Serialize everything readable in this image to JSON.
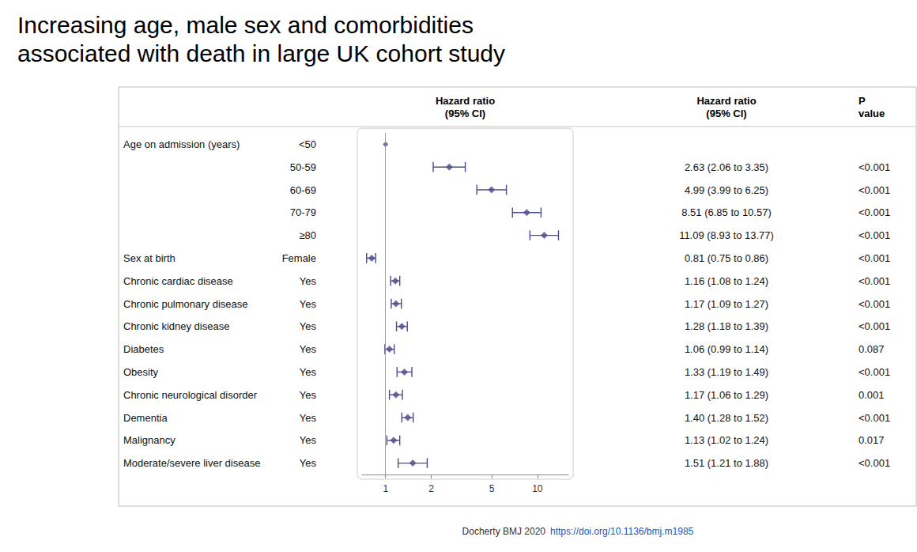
{
  "chart_data": {
    "type": "forest",
    "title": "Increasing age, male sex and comorbidities\nassociated with death in large UK cohort study",
    "xlabel": "Hazard ratio\n(95% CI)",
    "row_labels": [
      "Age on admission (years)",
      null,
      null,
      null,
      null,
      "Sex at birth",
      "Chronic cardiac disease",
      "Chronic pulmonary disease",
      "Chronic kidney disease",
      "Diabetes",
      "Obesity",
      "Chronic neurological disorder",
      "Dementia",
      "Malignancy",
      "Moderate/severe liver disease"
    ],
    "categories": [
      "<50",
      "50-59",
      "60-69",
      "70-79",
      "≥80",
      "Female",
      "Yes",
      "Yes",
      "Yes",
      "Yes",
      "Yes",
      "Yes",
      "Yes",
      "Yes",
      "Yes"
    ],
    "values": [
      1.0,
      2.63,
      4.99,
      8.51,
      11.09,
      0.81,
      1.16,
      1.17,
      1.28,
      1.06,
      1.33,
      1.17,
      1.4,
      1.13,
      1.51
    ],
    "lo": [
      1.0,
      2.06,
      3.99,
      6.85,
      8.93,
      0.75,
      1.08,
      1.09,
      1.18,
      0.99,
      1.19,
      1.06,
      1.28,
      1.02,
      1.21
    ],
    "hi": [
      1.0,
      3.35,
      6.25,
      10.57,
      13.77,
      0.86,
      1.24,
      1.27,
      1.39,
      1.14,
      1.49,
      1.29,
      1.52,
      1.24,
      1.88
    ],
    "hr_labels": [
      null,
      "2.63 (2.06 to 3.35)",
      "4.99 (3.99 to 6.25)",
      "8.51 (6.85 to 10.57)",
      "11.09 (8.93 to 13.77)",
      "0.81 (0.75 to 0.86)",
      "1.16 (1.08 to 1.24)",
      "1.17 (1.09 to 1.27)",
      "1.28 (1.18 to 1.39)",
      "1.06 (0.99 to 1.14)",
      "1.33 (1.19 to 1.49)",
      "1.17 (1.06 to 1.29)",
      "1.40 (1.28 to 1.52)",
      "1.13 (1.02 to 1.24)",
      "1.51 (1.21 to 1.88)"
    ],
    "p_labels": [
      null,
      "<0.001",
      "<0.001",
      "<0.001",
      "<0.001",
      "<0.001",
      "<0.001",
      "<0.001",
      "<0.001",
      "0.087",
      "<0.001",
      "0.001",
      "<0.001",
      "0.017",
      "<0.001"
    ],
    "column_headers": [
      "Hazard ratio\n(95% CI)",
      "P\nvalue"
    ],
    "reference_line": 1,
    "color": "#4a4a8a",
    "log": "x",
    "xlim": [
      0.7,
      16
    ],
    "xticks": [
      1,
      2,
      5,
      10
    ],
    "grid": false,
    "footer": "Docherty BMJ 2020",
    "footer_link": "https://doi.org/10.1136/bmj.m1985"
  }
}
